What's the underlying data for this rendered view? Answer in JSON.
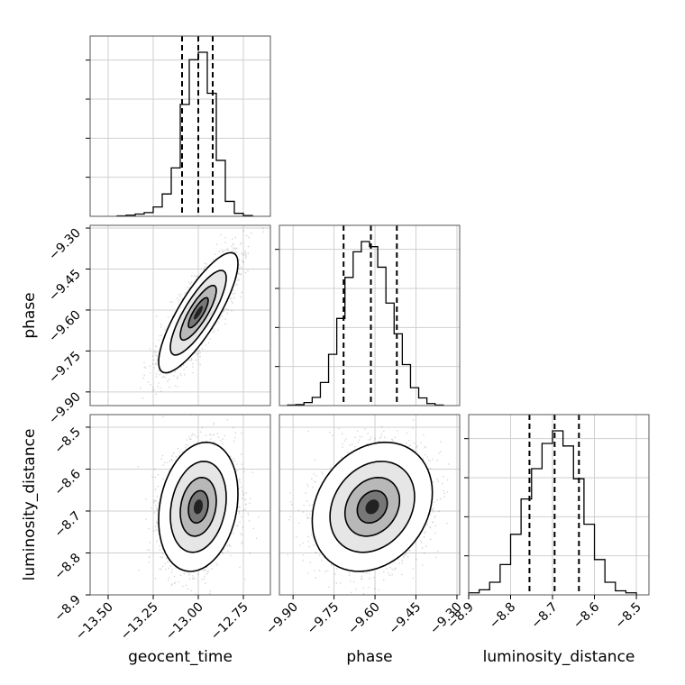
{
  "chart_data": {
    "type": "corner",
    "parameters": [
      "geocent_time",
      "phase",
      "luminosity_distance"
    ],
    "grid": true,
    "histograms": [
      {
        "parameter": "geocent_time",
        "bin_edges": [
          -13.45,
          -13.4,
          -13.35,
          -13.3,
          -13.25,
          -13.2,
          -13.15,
          -13.1,
          -13.05,
          -13.0,
          -12.95,
          -12.9,
          -12.85,
          -12.8,
          -12.75,
          -12.7
        ],
        "counts": [
          1,
          3,
          6,
          10,
          25,
          60,
          130,
          300,
          420,
          440,
          330,
          150,
          40,
          8,
          2
        ],
        "quantiles": [
          -13.09,
          -13.0,
          -12.92
        ]
      },
      {
        "parameter": "phase",
        "bin_edges": [
          -9.92,
          -9.89,
          -9.86,
          -9.83,
          -9.8,
          -9.77,
          -9.74,
          -9.71,
          -9.68,
          -9.65,
          -9.62,
          -9.59,
          -9.56,
          -9.53,
          -9.5,
          -9.47,
          -9.44,
          -9.41,
          -9.38,
          -9.35
        ],
        "counts": [
          1,
          2,
          6,
          16,
          45,
          100,
          170,
          250,
          300,
          320,
          310,
          270,
          200,
          140,
          80,
          35,
          15,
          4,
          1
        ],
        "quantiles": [
          -9.715,
          -9.615,
          -9.52
        ]
      },
      {
        "parameter": "luminosity_distance",
        "bin_edges": [
          -8.9,
          -8.875,
          -8.85,
          -8.825,
          -8.8,
          -8.775,
          -8.75,
          -8.725,
          -8.7,
          -8.675,
          -8.65,
          -8.625,
          -8.6,
          -8.575,
          -8.55,
          -8.525,
          -8.5
        ],
        "counts": [
          4,
          10,
          25,
          60,
          120,
          190,
          250,
          300,
          325,
          295,
          230,
          140,
          70,
          25,
          8,
          4
        ],
        "quantiles": [
          -8.755,
          -8.695,
          -8.637
        ]
      }
    ],
    "correlations": [
      {
        "x": "geocent_time",
        "y": "phase",
        "mean": [
          -13.0,
          -9.61
        ],
        "sd": [
          0.1,
          0.1
        ],
        "rho": 0.82
      },
      {
        "x": "geocent_time",
        "y": "luminosity_distance",
        "mean": [
          -13.0,
          -8.69
        ],
        "sd": [
          0.1,
          0.07
        ],
        "rho": 0.2
      },
      {
        "x": "phase",
        "y": "luminosity_distance",
        "mean": [
          -9.61,
          -8.69
        ],
        "sd": [
          0.1,
          0.07
        ],
        "rho": 0.22
      }
    ],
    "axes": {
      "geocent_time": {
        "range": [
          -13.6,
          -12.6
        ],
        "ticks": [
          "−13.50",
          "−13.25",
          "−13.00",
          "−12.75"
        ],
        "tick_values": [
          -13.5,
          -13.25,
          -13.0,
          -12.75
        ]
      },
      "phase": {
        "range": [
          -9.95,
          -9.29
        ],
        "ticks": [
          "−9.30",
          "−9.45",
          "−9.60",
          "−9.75",
          "−9.90"
        ],
        "tick_values": [
          -9.3,
          -9.45,
          -9.6,
          -9.75,
          -9.9
        ]
      },
      "luminosity_distance": {
        "range": [
          -8.9,
          -8.47
        ],
        "ticks": [
          "−8.9",
          "−8.8",
          "−8.7",
          "−8.6",
          "−8.5"
        ],
        "tick_values": [
          -8.9,
          -8.8,
          -8.7,
          -8.6,
          -8.5
        ]
      }
    },
    "bottom_tick_sets": {
      "geocent_time": [
        "−13.50",
        "−13.25",
        "−13.00",
        "−12.75"
      ],
      "phase": [
        "−9.90",
        "−9.75",
        "−9.60",
        "−9.45",
        "−9.30"
      ],
      "luminosity_distance": [
        "−8.9",
        "−8.8",
        "−8.7",
        "−8.6",
        "−8.5"
      ]
    },
    "left_tick_sets": {
      "phase": [
        "−9.30",
        "−9.45",
        "−9.60",
        "−9.75",
        "−9.90"
      ],
      "luminosity_distance": [
        "−8.5",
        "−8.6",
        "−8.7",
        "−8.8",
        "−8.9"
      ]
    },
    "xlabels": [
      "geocent_time",
      "phase",
      "luminosity_distance"
    ],
    "ylabels": [
      "phase",
      "luminosity_distance"
    ]
  }
}
